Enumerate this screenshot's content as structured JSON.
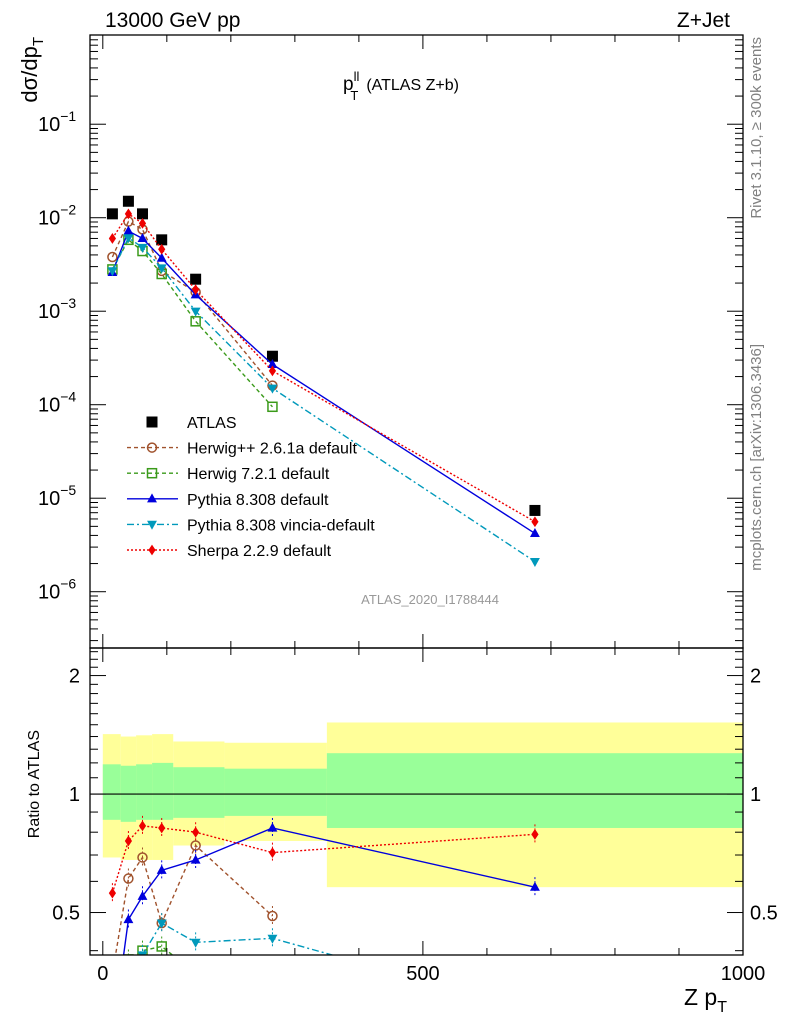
{
  "header": {
    "left": "13000 GeV pp",
    "right": "Z+Jet"
  },
  "plot_title": {
    "main": "p",
    "sup": "ll",
    "sub": "T",
    "suffix": "(ATLAS Z+b)"
  },
  "side_labels": {
    "rivet": "Rivet 3.1.10, ≥ 300k events",
    "mcplots": "mcplots.cern.ch [arXiv:1306.3436]"
  },
  "analysis_id": "ATLAS_2020_I1788444",
  "axes": {
    "y_main": {
      "base": "dσ/dp",
      "sub": "T"
    },
    "y_ratio": "Ratio to ATLAS",
    "x": {
      "base": "Z p",
      "sub": "T"
    }
  },
  "ticks": {
    "x": [
      "0",
      "500",
      "1000"
    ],
    "y_main": [
      {
        "base": "10",
        "exp": "−1"
      },
      {
        "base": "10",
        "exp": "−2"
      },
      {
        "base": "10",
        "exp": "−3"
      },
      {
        "base": "10",
        "exp": "−4"
      },
      {
        "base": "10",
        "exp": "−5"
      },
      {
        "base": "10",
        "exp": "−6"
      }
    ],
    "y_ratio": [
      "0.5",
      "1",
      "2"
    ]
  },
  "colors": {
    "atlas": "#000000",
    "herwigpp": "#a0522d",
    "herwig7": "#3a9a1a",
    "pythia": "#0000dd",
    "vincia": "#0099bb",
    "sherpa": "#ee0000",
    "band_inner": "#99ff99",
    "band_outer": "#ffff99"
  },
  "chart_data": {
    "type": "scatter",
    "x_range": [
      -20,
      1000
    ],
    "y_main_range": [
      2.5e-07,
      0.9
    ],
    "y_main_scale": "log",
    "y_ratio_range": [
      0.39,
      2.35
    ],
    "y_ratio_scale": "log",
    "legend_position": "bottom-left",
    "series": [
      {
        "key": "atlas",
        "name": "ATLAS",
        "marker": "square-filled",
        "dash": "none",
        "x": [
          15,
          40,
          62,
          92,
          145,
          265,
          675
        ],
        "y": [
          0.011,
          0.015,
          0.011,
          0.0058,
          0.0022,
          0.00033,
          7.4e-06
        ],
        "ratio": [
          1,
          1,
          1,
          1,
          1,
          1,
          1
        ]
      },
      {
        "key": "herwigpp",
        "name": "Herwig++ 2.6.1a default",
        "marker": "circle-open",
        "dash": "4,3",
        "x": [
          15,
          40,
          62,
          92,
          145,
          265
        ],
        "y": [
          0.0038,
          0.0091,
          0.0075,
          0.0027,
          0.0016,
          0.00016
        ],
        "ratio": [
          0.35,
          0.61,
          0.69,
          0.47,
          0.74,
          0.49
        ]
      },
      {
        "key": "herwig7",
        "name": "Herwig 7.2.1 default",
        "marker": "square-open",
        "dash": "4,3",
        "x": [
          15,
          40,
          62,
          92,
          145,
          265
        ],
        "y": [
          0.0028,
          0.0058,
          0.0044,
          0.0025,
          0.00078,
          9.5e-05
        ],
        "ratio": [
          0.25,
          0.38,
          0.4,
          0.41,
          0.35,
          0.29
        ]
      },
      {
        "key": "pythia",
        "name": "Pythia 8.308 default",
        "marker": "triangle-up",
        "dash": "none",
        "x": [
          15,
          40,
          62,
          92,
          145,
          265,
          675
        ],
        "y": [
          0.0026,
          0.0072,
          0.006,
          0.0037,
          0.0015,
          0.00027,
          4.2e-06
        ],
        "ratio": [
          0.24,
          0.48,
          0.55,
          0.64,
          0.68,
          0.82,
          0.58
        ]
      },
      {
        "key": "vincia",
        "name": "Pythia 8.308 vincia-default",
        "marker": "triangle-down",
        "dash": "7,3,2,3",
        "x": [
          15,
          40,
          62,
          92,
          145,
          265,
          675
        ],
        "y": [
          0.0027,
          0.0061,
          0.0048,
          0.0029,
          0.001,
          0.00015,
          2.1e-06
        ],
        "ratio": [
          0.24,
          0.36,
          0.39,
          0.47,
          0.42,
          0.43,
          0.28
        ]
      },
      {
        "key": "sherpa",
        "name": "Sherpa 2.2.9 default",
        "marker": "diamond",
        "dash": "2,2",
        "x": [
          15,
          40,
          62,
          92,
          145,
          265,
          675
        ],
        "y": [
          0.006,
          0.011,
          0.0087,
          0.0046,
          0.0017,
          0.00023,
          5.6e-06
        ],
        "ratio": [
          0.56,
          0.76,
          0.83,
          0.82,
          0.8,
          0.71,
          0.79
        ]
      }
    ],
    "error_bands": [
      {
        "x0": 0,
        "x1": 28,
        "inner": [
          0.86,
          1.19
        ],
        "outer": [
          0.69,
          1.42
        ]
      },
      {
        "x0": 28,
        "x1": 52,
        "inner": [
          0.85,
          1.18
        ],
        "outer": [
          0.68,
          1.4
        ]
      },
      {
        "x0": 52,
        "x1": 77,
        "inner": [
          0.86,
          1.19
        ],
        "outer": [
          0.68,
          1.41
        ]
      },
      {
        "x0": 77,
        "x1": 110,
        "inner": [
          0.86,
          1.2
        ],
        "outer": [
          0.68,
          1.42
        ]
      },
      {
        "x0": 110,
        "x1": 190,
        "inner": [
          0.87,
          1.17
        ],
        "outer": [
          0.74,
          1.36
        ]
      },
      {
        "x0": 190,
        "x1": 350,
        "inner": [
          0.88,
          1.16
        ],
        "outer": [
          0.76,
          1.35
        ]
      },
      {
        "x0": 350,
        "x1": 1000,
        "inner": [
          0.82,
          1.27
        ],
        "outer": [
          0.58,
          1.52
        ]
      }
    ]
  }
}
